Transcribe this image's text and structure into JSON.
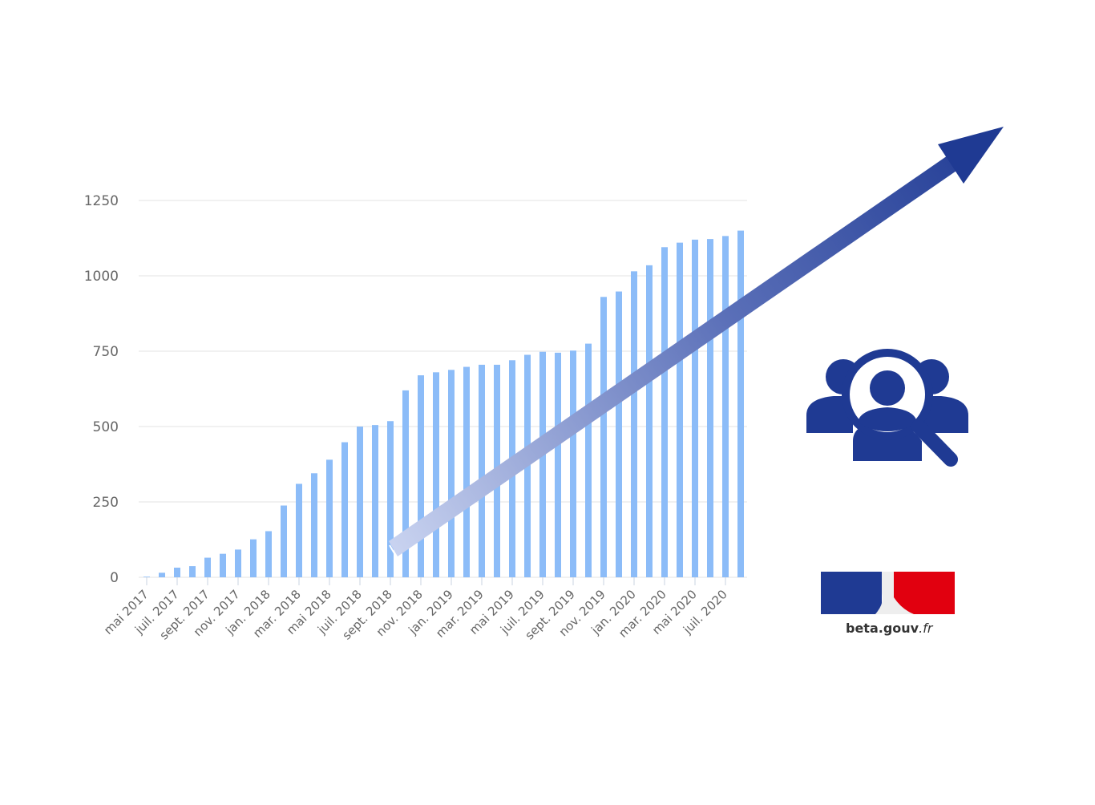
{
  "colors": {
    "bar": "#8cbcf8",
    "grid": "#e3e3e3",
    "axis_text": "#666666",
    "arrow_dark": "#1f3a93",
    "arrow_light": "#c9d3f0",
    "icon_blue": "#1f3a93",
    "flag_blue": "#1f3a93",
    "flag_red": "#e1000f"
  },
  "logo": {
    "brand": "beta.gouv",
    "tld": ".fr"
  },
  "icons": {
    "people": "people-search-icon",
    "arrow": "growth-arrow-icon"
  },
  "chart_data": {
    "type": "bar",
    "title": "",
    "xlabel": "",
    "ylabel": "",
    "ylim": [
      0,
      1250
    ],
    "yticks": [
      0,
      250,
      500,
      750,
      1000,
      1250
    ],
    "grid": true,
    "legend": "none",
    "x_tick_labels": [
      "mai 2017",
      "juil. 2017",
      "sept. 2017",
      "nov. 2017",
      "jan. 2018",
      "mar. 2018",
      "mai 2018",
      "juil. 2018",
      "sept. 2018",
      "nov. 2018",
      "jan. 2019",
      "mar. 2019",
      "mai 2019",
      "juil. 2019",
      "sept. 2019",
      "nov. 2019",
      "jan. 2020",
      "mar. 2020",
      "mai 2020",
      "juil. 2020"
    ],
    "series": [
      {
        "values": [
          2,
          15,
          32,
          37,
          65,
          78,
          92,
          126,
          153,
          238,
          310,
          345,
          390,
          448,
          500,
          505,
          518,
          620,
          670,
          680,
          688,
          698,
          705,
          705,
          720,
          738,
          748,
          745,
          752,
          775,
          930,
          948,
          1015,
          1035,
          1095,
          1110,
          1120,
          1122,
          1132,
          1150
        ]
      }
    ]
  }
}
